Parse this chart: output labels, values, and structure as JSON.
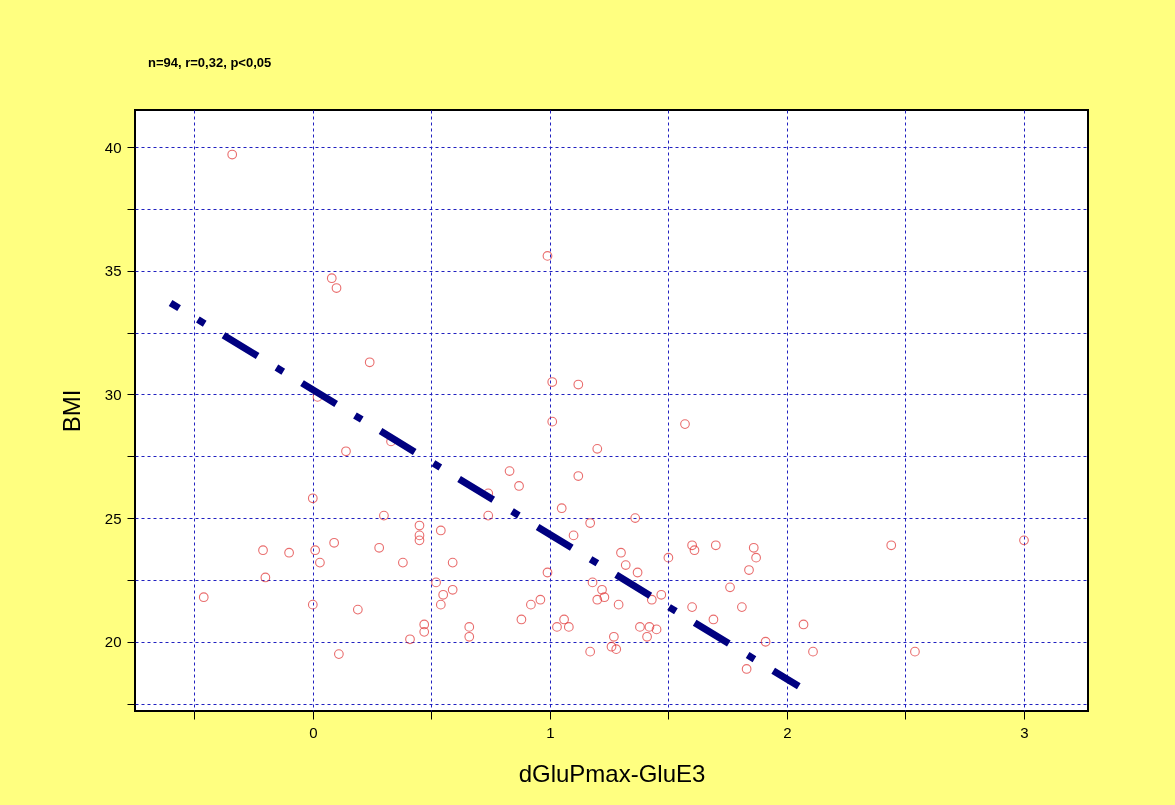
{
  "chart_data": {
    "type": "scatter",
    "title": "n=94, r=0,32, p<0,05",
    "xlabel": "dGluPmax-GluE3",
    "ylabel": "BMI",
    "xlim": [
      -0.75,
      3.27
    ],
    "ylim": [
      17.2,
      41.5
    ],
    "xticks": [
      {
        "value": -0.5,
        "label": null
      },
      0,
      {
        "value": 0.5,
        "label": null
      },
      1,
      {
        "value": 1.5,
        "label": null
      },
      2,
      {
        "value": 2.5,
        "label": null
      },
      3
    ],
    "yticks": [
      {
        "value": 17.5,
        "label": null
      },
      20,
      {
        "value": 22.5,
        "label": null
      },
      25,
      {
        "value": 27.5,
        "label": null
      },
      30,
      {
        "value": 32.5,
        "label": null
      },
      35,
      {
        "value": 37.5,
        "label": null
      },
      40
    ],
    "grid": true,
    "marker": "circle",
    "series": [
      {
        "color": "#e03030",
        "x": [
          -0.34,
          0.08,
          0.1,
          0.99,
          0.24,
          0.02,
          1.01,
          1.12,
          1.01,
          1.57,
          0.14,
          0.33,
          0.83,
          0.87,
          0.74,
          1.12,
          1.2,
          0.0,
          0.3,
          0.74,
          1.05,
          1.36,
          0.45,
          0.45,
          0.45,
          0.54,
          1.1,
          1.17,
          -0.21,
          -0.1,
          0.01,
          0.03,
          0.09,
          0.28,
          0.38,
          0.59,
          -0.2,
          -0.46,
          0.0,
          0.19,
          0.52,
          0.55,
          0.54,
          0.59,
          0.41,
          0.47,
          0.47,
          0.66,
          0.66,
          0.11,
          0.88,
          0.92,
          0.96,
          0.99,
          1.06,
          1.08,
          1.03,
          1.17,
          1.18,
          1.22,
          1.2,
          1.23,
          1.29,
          1.3,
          1.32,
          1.37,
          1.27,
          1.26,
          1.28,
          1.38,
          1.42,
          1.45,
          1.41,
          1.43,
          1.47,
          1.5,
          1.6,
          1.61,
          1.6,
          1.7,
          1.69,
          1.76,
          1.81,
          1.84,
          1.86,
          1.87,
          1.83,
          1.91,
          2.07,
          2.11,
          2.44,
          2.54,
          3.0
        ],
        "values": [
          39.7,
          34.7,
          34.3,
          35.6,
          31.3,
          29.9,
          30.5,
          30.4,
          28.9,
          28.8,
          27.7,
          28.1,
          26.9,
          26.3,
          26.0,
          26.7,
          27.8,
          25.8,
          25.1,
          25.1,
          25.4,
          25.0,
          24.7,
          24.3,
          24.1,
          24.5,
          24.3,
          24.8,
          23.7,
          23.6,
          23.7,
          23.2,
          24.0,
          23.8,
          23.2,
          23.2,
          22.6,
          21.8,
          21.5,
          21.3,
          22.4,
          21.9,
          21.5,
          22.1,
          20.1,
          20.7,
          20.4,
          20.6,
          20.2,
          19.5,
          20.9,
          21.5,
          21.7,
          22.8,
          20.9,
          20.6,
          20.6,
          19.6,
          22.4,
          22.1,
          21.7,
          21.8,
          21.5,
          23.6,
          23.1,
          22.8,
          20.2,
          19.8,
          19.7,
          20.6,
          20.6,
          20.5,
          20.2,
          21.7,
          21.9,
          23.4,
          23.9,
          23.7,
          21.4,
          23.9,
          20.9,
          22.2,
          21.4,
          22.9,
          23.8,
          23.4,
          18.9,
          20.0,
          20.7,
          19.6,
          23.9,
          19.6,
          24.1
        ]
      },
      {
        "type": "line",
        "color": "#000080",
        "line_style": "dashed",
        "marker": "none",
        "x": [
          -0.6,
          2.05
        ],
        "values": [
          33.7,
          18.2
        ]
      }
    ]
  }
}
